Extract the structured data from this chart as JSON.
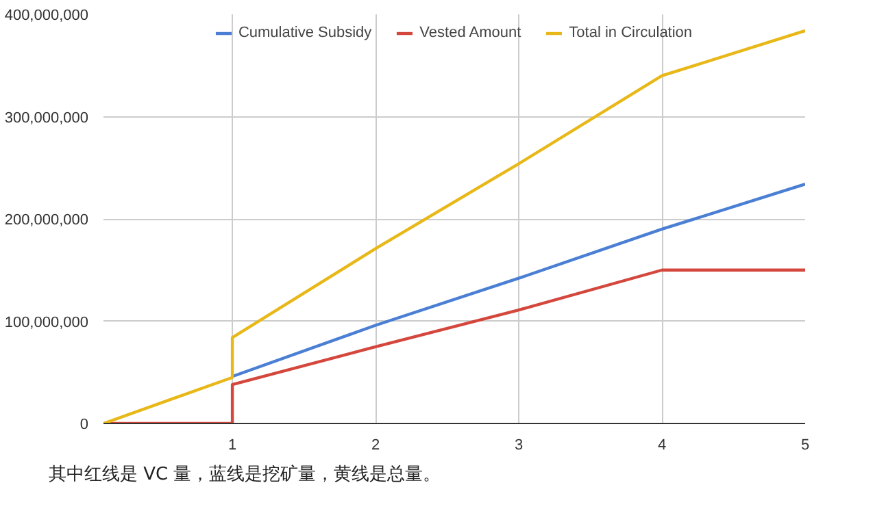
{
  "chart_data": {
    "type": "line",
    "series": [
      {
        "name": "Cumulative Subsidy",
        "color": "#4a7fd4",
        "x": [
          1,
          2,
          3,
          4,
          5
        ],
        "values": [
          46000000,
          96000000,
          142000000,
          190000000,
          234000000
        ]
      },
      {
        "name": "Vested Amount",
        "color": "#d4473d",
        "x": [
          0.1,
          1,
          1,
          2,
          3,
          4,
          5
        ],
        "values": [
          0,
          0,
          38000000,
          75000000,
          111000000,
          150000000,
          150000000
        ]
      },
      {
        "name": "Total in Circulation",
        "color": "#e8b819",
        "x": [
          0.1,
          1,
          1,
          2,
          3,
          4,
          5
        ],
        "values": [
          0,
          45000000,
          84000000,
          171000000,
          254000000,
          340000000,
          384000000
        ]
      }
    ],
    "xlim": [
      0.1,
      5
    ],
    "xticks": [
      1,
      2,
      3,
      4,
      5
    ],
    "ylim": [
      0,
      400000000
    ],
    "yticks": [
      {
        "value": 0,
        "label": "0"
      },
      {
        "value": 100000000,
        "label": "100,000,000"
      },
      {
        "value": 200000000,
        "label": "200,000,000"
      },
      {
        "value": 300000000,
        "label": "300,000,000"
      },
      {
        "value": 400000000,
        "label": "400,000,000"
      }
    ],
    "grid": true,
    "legend": "top",
    "line_style": "solid",
    "annotations": [
      "其中红线是 VC 量，蓝线是挖矿量，黄线是总量。"
    ]
  }
}
